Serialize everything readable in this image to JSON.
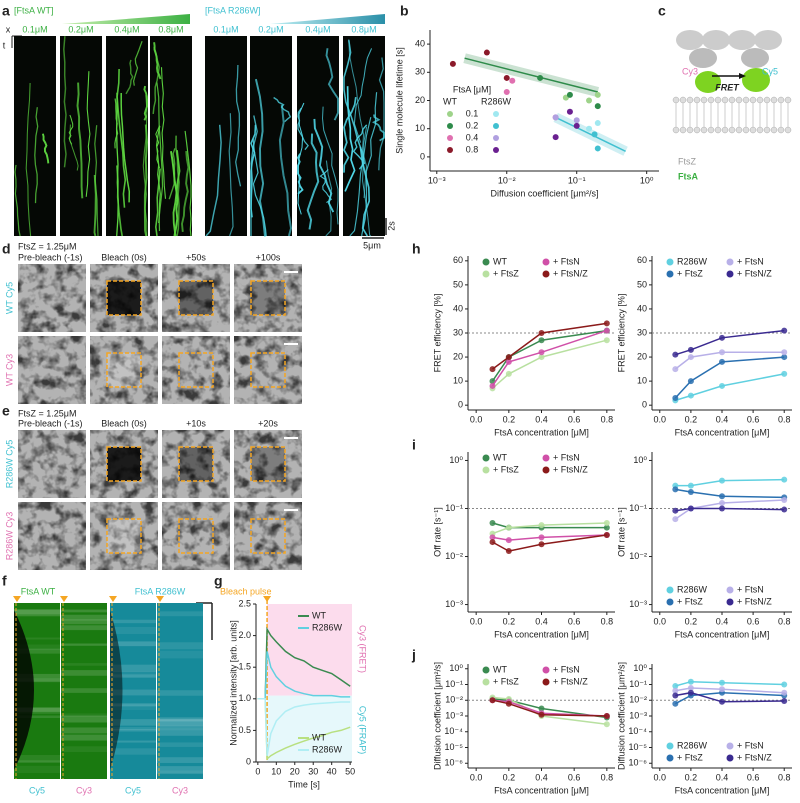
{
  "panel_labels": [
    "a",
    "b",
    "c",
    "d",
    "e",
    "f",
    "g",
    "h",
    "i",
    "j"
  ],
  "kymographs": {
    "wt_header": "[FtsA WT]",
    "r286w_header": "[FtsA R286W]",
    "wt_concentrations": [
      "0.1μM",
      "0.2μM",
      "0.4μM",
      "0.8μM"
    ],
    "r286w_concentrations": [
      "0.1μM",
      "0.2μM",
      "0.4μM",
      "0.8μM"
    ],
    "axis_x": "x",
    "axis_t": "t",
    "scale_time": "2s",
    "scale_space": "5μm"
  },
  "schematic": {
    "cy3": "Cy3",
    "cy5": "Cy5",
    "fret": "FRET",
    "ftsz": "FtsZ",
    "ftsa": "FtsA"
  },
  "frap_wt": {
    "condition": "FtsZ = 1.25μM",
    "timepoints": [
      "Pre-bleach (-1s)",
      "Bleach (0s)",
      "+50s",
      "+100s"
    ],
    "rows": [
      "WT Cy5",
      "WT Cy3"
    ]
  },
  "frap_r286w": {
    "condition": "FtsZ = 1.25μM",
    "timepoints": [
      "Pre-bleach (-1s)",
      "Bleach (0s)",
      "+10s",
      "+20s"
    ],
    "rows": [
      "R286W Cy5",
      "R286W Cy3"
    ]
  },
  "kymo_f": {
    "titles": [
      "FtsA WT",
      "FtsA R286W"
    ],
    "channels": [
      "Cy5",
      "Cy3",
      "Cy5",
      "Cy3"
    ]
  },
  "chart_data": [
    {
      "type": "scatter",
      "xlabel": "Diffusion coefficient [μm²/s]",
      "ylabel": "Single molecule lifetime [s]",
      "xlog": true,
      "xlim": [
        0.0008,
        1.5
      ],
      "xticks": [
        {
          "value": 0.001,
          "label": "10⁻³"
        },
        {
          "value": 0.01,
          "label": "10⁻²"
        },
        {
          "value": 0.1,
          "label": "10⁻¹"
        },
        {
          "value": 1,
          "label": "10⁰"
        }
      ],
      "ylim": [
        -5,
        45
      ],
      "yticks": [
        0,
        10,
        20,
        30,
        40
      ],
      "legend_title": "FtsA [μM]",
      "legend_columns": [
        "WT",
        "R286W"
      ],
      "legend_rows": [
        "0.1",
        "0.2",
        "0.4",
        "0.8"
      ],
      "series": [
        {
          "color": "#9ed38a",
          "x": [
            0.15,
            0.07,
            0.2
          ],
          "values": [
            20,
            21,
            22
          ]
        },
        {
          "color": "#2e8b4a",
          "x": [
            0.03,
            0.08,
            0.2
          ],
          "values": [
            28,
            22,
            18
          ]
        },
        {
          "color": "#e070b0",
          "x": [
            0.01,
            0.012,
            0.05
          ],
          "values": [
            23,
            27,
            14
          ]
        },
        {
          "color": "#8b1a2a",
          "x": [
            0.0017,
            0.0052,
            0.01
          ],
          "values": [
            33,
            37,
            28
          ]
        },
        {
          "color": "#a0e8f0",
          "x": [
            0.15,
            0.2
          ],
          "values": [
            10,
            12
          ]
        },
        {
          "color": "#40c0d0",
          "x": [
            0.2,
            0.18
          ],
          "values": [
            3,
            8
          ]
        },
        {
          "color": "#b0a0e0",
          "x": [
            0.1,
            0.05
          ],
          "values": [
            13,
            14
          ]
        },
        {
          "color": "#6a2090",
          "x": [
            0.08,
            0.1,
            0.05
          ],
          "values": [
            16,
            11,
            7
          ]
        }
      ],
      "fits": [
        {
          "color": "#2e8b4a",
          "x": [
            0.0025,
            0.2
          ],
          "values": [
            35,
            23
          ]
        },
        {
          "color": "#40c0d0",
          "x": [
            0.05,
            0.5
          ],
          "values": [
            14,
            2
          ]
        }
      ]
    },
    {
      "type": "line",
      "xlabel": "Time [s]",
      "ylabel": "Normalized intensity [arb. units]",
      "annotation": "Bleach pulse",
      "bleach_time": 5,
      "side_labels": [
        "Cy3 (FRET)",
        "Cy5 (FRAP)"
      ],
      "xlim": [
        -1,
        51
      ],
      "xticks": [
        0,
        10,
        20,
        30,
        40,
        50
      ],
      "ylim": [
        0,
        2.5
      ],
      "yticks": [
        0,
        0.5,
        {
          "value": 1,
          "label": "1.0"
        },
        1.5,
        {
          "value": 2,
          "label": "2.0"
        },
        2.5
      ],
      "x": [
        0,
        2,
        4,
        5,
        7,
        10,
        15,
        20,
        25,
        30,
        35,
        40,
        45,
        50
      ],
      "series": [
        {
          "name": "WT",
          "color": "#3a8a50",
          "values": [
            1.0,
            1.0,
            1.0,
            2.1,
            2.0,
            1.9,
            1.75,
            1.65,
            1.6,
            1.5,
            1.45,
            1.4,
            1.3,
            1.2
          ]
        },
        {
          "name": "R286W",
          "color": "#60d0e0",
          "values": [
            1.0,
            1.0,
            1.0,
            1.75,
            1.5,
            1.35,
            1.2,
            1.12,
            1.08,
            1.05,
            1.05,
            1.05,
            1.03,
            1.03
          ]
        },
        {
          "name": "WT",
          "color": "#b8e080",
          "values": [
            1.0,
            1.0,
            1.0,
            0.05,
            0.1,
            0.15,
            0.22,
            0.28,
            0.33,
            0.38,
            0.42,
            0.47,
            0.5,
            0.55
          ]
        },
        {
          "name": "R286W",
          "color": "#b0eef4",
          "values": [
            1.0,
            1.0,
            1.0,
            0.1,
            0.45,
            0.65,
            0.8,
            0.87,
            0.9,
            0.92,
            0.93,
            0.94,
            0.95,
            0.95
          ]
        }
      ]
    },
    {
      "type": "line",
      "xlabel": "FtsA concentration [μM]",
      "ylabel": "FRET efficiency [%]",
      "legend": "top",
      "xlim": [
        -0.05,
        0.85
      ],
      "xticks": [
        {
          "value": 0,
          "label": "0.0"
        },
        0.2,
        0.4,
        0.6,
        0.8
      ],
      "ylim": [
        -2,
        62
      ],
      "yticks": [
        0,
        10,
        20,
        30,
        40,
        50,
        60
      ],
      "reference_line": 30,
      "x": [
        0.1,
        0.2,
        0.4,
        0.8
      ],
      "series": [
        {
          "name": "WT",
          "color": "#3a8a50",
          "values": [
            10,
            20,
            27,
            31
          ]
        },
        {
          "name": "+ FtsZ",
          "color": "#b8e0a0",
          "values": [
            7,
            13,
            20,
            27
          ]
        },
        {
          "name": "+ FtsN",
          "color": "#d050a8",
          "values": [
            8,
            18,
            22,
            31
          ]
        },
        {
          "name": "+ FtsN/Z",
          "color": "#8b1a1a",
          "values": [
            15,
            20,
            30,
            34
          ]
        }
      ]
    },
    {
      "type": "line",
      "xlabel": "FtsA concentration [μM]",
      "ylabel": "FRET efficiency [%]",
      "legend": "top",
      "xlim": [
        -0.05,
        0.85
      ],
      "xticks": [
        {
          "value": 0,
          "label": "0.0"
        },
        0.2,
        0.4,
        0.6,
        0.8
      ],
      "ylim": [
        -2,
        62
      ],
      "yticks": [
        0,
        10,
        20,
        30,
        40,
        50,
        60
      ],
      "reference_line": 30,
      "x": [
        0.1,
        0.2,
        0.4,
        0.8
      ],
      "series": [
        {
          "name": "R286W",
          "color": "#60d0e0",
          "values": [
            2,
            4,
            8,
            13
          ]
        },
        {
          "name": "+ FtsZ",
          "color": "#2a70b0",
          "values": [
            3,
            10,
            18,
            20
          ]
        },
        {
          "name": "+ FtsN",
          "color": "#b8b0e8",
          "values": [
            15,
            20,
            22,
            22
          ]
        },
        {
          "name": "+ FtsN/Z",
          "color": "#3a2a90",
          "values": [
            21,
            23,
            28,
            31
          ]
        }
      ]
    },
    {
      "type": "line",
      "xlabel": "FtsA concentration [μM]",
      "ylabel": "Off rate [s⁻¹]",
      "legend": "top",
      "ylog": true,
      "xlim": [
        -0.05,
        0.85
      ],
      "xticks": [
        {
          "value": 0,
          "label": "0.0"
        },
        0.2,
        0.4,
        0.6,
        0.8
      ],
      "ylim": [
        0.0007,
        1.5
      ],
      "yticks": [
        {
          "value": 0.001,
          "label": "10⁻³"
        },
        {
          "value": 0.01,
          "label": "10⁻²"
        },
        {
          "value": 0.1,
          "label": "10⁻¹"
        },
        {
          "value": 1,
          "label": "10⁰"
        }
      ],
      "reference_line": 0.1,
      "x": [
        0.1,
        0.2,
        0.4,
        0.8
      ],
      "series": [
        {
          "name": "WT",
          "color": "#3a8a50",
          "values": [
            0.05,
            0.04,
            0.04,
            0.04
          ]
        },
        {
          "name": "+ FtsZ",
          "color": "#b8e0a0",
          "values": [
            0.03,
            0.04,
            0.045,
            0.05
          ]
        },
        {
          "name": "+ FtsN",
          "color": "#d050a8",
          "values": [
            0.025,
            0.022,
            0.025,
            0.028
          ]
        },
        {
          "name": "+ FtsN/Z",
          "color": "#8b1a1a",
          "values": [
            0.02,
            0.013,
            0.018,
            0.028
          ]
        }
      ]
    },
    {
      "type": "line",
      "xlabel": "FtsA concentration [μM]",
      "ylabel": "Off rate [s⁻¹]",
      "legend": "bottom",
      "ylog": true,
      "xlim": [
        -0.05,
        0.85
      ],
      "xticks": [
        {
          "value": 0,
          "label": "0.0"
        },
        0.2,
        0.4,
        0.6,
        0.8
      ],
      "ylim": [
        0.0007,
        1.5
      ],
      "yticks": [
        {
          "value": 0.001,
          "label": "10⁻³"
        },
        {
          "value": 0.01,
          "label": "10⁻²"
        },
        {
          "value": 0.1,
          "label": "10⁻¹"
        },
        {
          "value": 1,
          "label": "10⁰"
        }
      ],
      "reference_line": 0.1,
      "x": [
        0.1,
        0.2,
        0.4,
        0.8
      ],
      "series": [
        {
          "name": "R286W",
          "color": "#60d0e0",
          "values": [
            0.3,
            0.3,
            0.38,
            0.4
          ]
        },
        {
          "name": "+ FtsZ",
          "color": "#2a70b0",
          "values": [
            0.25,
            0.22,
            0.18,
            0.17
          ]
        },
        {
          "name": "+ FtsN",
          "color": "#b8b0e8",
          "values": [
            0.06,
            0.1,
            0.13,
            0.15
          ]
        },
        {
          "name": "+ FtsN/Z",
          "color": "#3a2a90",
          "values": [
            0.09,
            0.1,
            0.1,
            0.095
          ]
        }
      ]
    },
    {
      "type": "line",
      "xlabel": "FtsA concentration [μM]",
      "ylabel": "Diffusion coefficient [μm²/s]",
      "legend": "top",
      "ylog": true,
      "xlim": [
        -0.05,
        0.85
      ],
      "xticks": [
        {
          "value": 0,
          "label": "0.0"
        },
        0.2,
        0.4,
        0.6,
        0.8
      ],
      "ylim": [
        5e-07,
        2
      ],
      "yticks": [
        {
          "value": 1e-06,
          "label": "10⁻⁶"
        },
        {
          "value": 1e-05,
          "label": "10⁻⁵"
        },
        {
          "value": 0.0001,
          "label": "10⁻⁴"
        },
        {
          "value": 0.001,
          "label": "10⁻³"
        },
        {
          "value": 0.01,
          "label": "10⁻²"
        },
        {
          "value": 0.1,
          "label": "10⁻¹"
        },
        {
          "value": 1,
          "label": "10⁰"
        }
      ],
      "reference_line": 0.01,
      "x": [
        0.1,
        0.2,
        0.4,
        0.8
      ],
      "series": [
        {
          "name": "WT",
          "color": "#3a8a50",
          "values": [
            0.012,
            0.01,
            0.003,
            0.0008
          ]
        },
        {
          "name": "+ FtsZ",
          "color": "#b8e0a0",
          "values": [
            0.015,
            0.012,
            0.001,
            0.0003
          ]
        },
        {
          "name": "+ FtsN",
          "color": "#d050a8",
          "values": [
            0.01,
            0.008,
            0.0015,
            0.001
          ]
        },
        {
          "name": "+ FtsN/Z",
          "color": "#8b1a1a",
          "values": [
            0.01,
            0.006,
            0.0012,
            0.001
          ]
        }
      ]
    },
    {
      "type": "line",
      "xlabel": "FtsA concentration [μM]",
      "ylabel": "Diffusion coefficient [μm²/s]",
      "legend": "bottom",
      "ylog": true,
      "xlim": [
        -0.05,
        0.85
      ],
      "xticks": [
        {
          "value": 0,
          "label": "0.0"
        },
        0.2,
        0.4,
        0.6,
        0.8
      ],
      "ylim": [
        5e-07,
        2
      ],
      "yticks": [
        {
          "value": 1e-06,
          "label": "10⁻⁶"
        },
        {
          "value": 1e-05,
          "label": "10⁻⁵"
        },
        {
          "value": 0.0001,
          "label": "10⁻⁴"
        },
        {
          "value": 0.001,
          "label": "10⁻³"
        },
        {
          "value": 0.01,
          "label": "10⁻²"
        },
        {
          "value": 0.1,
          "label": "10⁻¹"
        },
        {
          "value": 1,
          "label": "10⁰"
        }
      ],
      "reference_line": 0.01,
      "x": [
        0.1,
        0.2,
        0.4,
        0.8
      ],
      "series": [
        {
          "name": "R286W",
          "color": "#60d0e0",
          "values": [
            0.08,
            0.15,
            0.13,
            0.1
          ]
        },
        {
          "name": "+ FtsZ",
          "color": "#2a70b0",
          "values": [
            0.006,
            0.02,
            0.03,
            0.02
          ]
        },
        {
          "name": "+ FtsN",
          "color": "#b8b0e8",
          "values": [
            0.04,
            0.06,
            0.05,
            0.03
          ]
        },
        {
          "name": "+ FtsN/Z",
          "color": "#3a2a90",
          "values": [
            0.02,
            0.03,
            0.008,
            0.009
          ]
        }
      ]
    }
  ]
}
